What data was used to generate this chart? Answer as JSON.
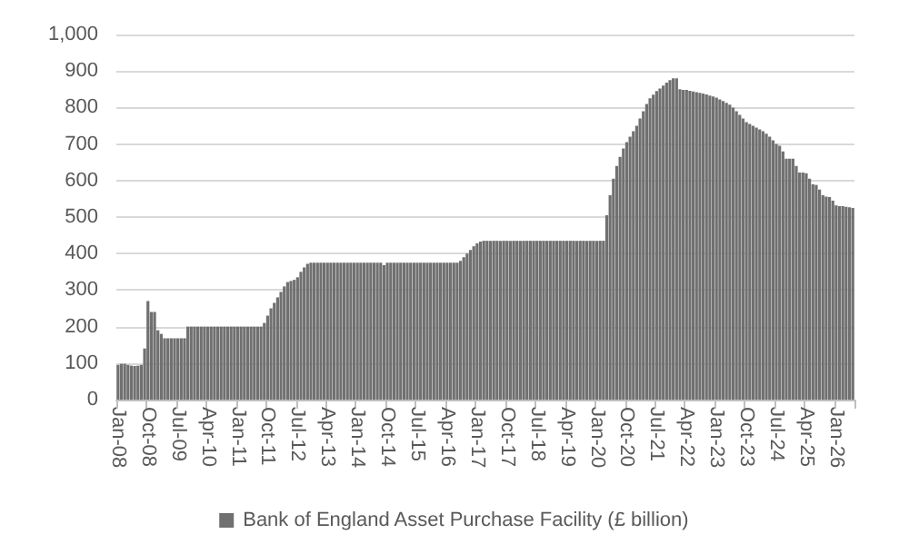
{
  "chart_data": {
    "type": "bar",
    "categories": [
      "Jan-08",
      null,
      null,
      null,
      null,
      null,
      null,
      null,
      null,
      "Oct-08",
      null,
      null,
      null,
      null,
      null,
      null,
      null,
      null,
      "Jul-09",
      null,
      null,
      null,
      null,
      null,
      null,
      null,
      null,
      "Apr-10",
      null,
      null,
      null,
      null,
      null,
      null,
      null,
      null,
      "Jan-11",
      null,
      null,
      null,
      null,
      null,
      null,
      null,
      null,
      "Oct-11",
      null,
      null,
      null,
      null,
      null,
      null,
      null,
      null,
      "Jul-12",
      null,
      null,
      null,
      null,
      null,
      null,
      null,
      null,
      "Apr-13",
      null,
      null,
      null,
      null,
      null,
      null,
      null,
      null,
      "Jan-14",
      null,
      null,
      null,
      null,
      null,
      null,
      null,
      null,
      "Oct-14",
      null,
      null,
      null,
      null,
      null,
      null,
      null,
      null,
      "Jul-15",
      null,
      null,
      null,
      null,
      null,
      null,
      null,
      null,
      "Apr-16",
      null,
      null,
      null,
      null,
      null,
      null,
      null,
      null,
      "Jan-17",
      null,
      null,
      null,
      null,
      null,
      null,
      null,
      null,
      "Oct-17",
      null,
      null,
      null,
      null,
      null,
      null,
      null,
      null,
      "Jul-18",
      null,
      null,
      null,
      null,
      null,
      null,
      null,
      null,
      "Apr-19",
      null,
      null,
      null,
      null,
      null,
      null,
      null,
      null,
      "Jan-20",
      null,
      null,
      null,
      null,
      null,
      null,
      null,
      null,
      "Oct-20",
      null,
      null,
      null,
      null,
      null,
      null,
      null,
      null,
      "Jul-21",
      null,
      null,
      null,
      null,
      null,
      null,
      null,
      null,
      "Apr-22",
      null,
      null,
      null,
      null,
      null,
      null,
      null,
      null,
      "Jan-23",
      null,
      null,
      null,
      null,
      null,
      null,
      null,
      null,
      "Oct-23",
      null,
      null,
      null,
      null,
      null,
      null,
      null,
      null,
      "Jul-24",
      null,
      null,
      null,
      null,
      null,
      null,
      null,
      null,
      "Apr-25",
      null,
      null,
      null,
      null,
      null,
      null,
      null,
      null,
      "Jan-26",
      null,
      null,
      null,
      null,
      null
    ],
    "series": [
      {
        "name": "Bank of England Asset Purchase Facility (£ billion)",
        "color": "#707070",
        "values": [
          95,
          98,
          98,
          95,
          93,
          92,
          93,
          95,
          140,
          270,
          240,
          240,
          190,
          180,
          168,
          168,
          168,
          168,
          168,
          168,
          168,
          200,
          200,
          200,
          200,
          200,
          200,
          200,
          200,
          200,
          200,
          200,
          200,
          200,
          200,
          200,
          200,
          200,
          200,
          200,
          200,
          200,
          200,
          200,
          210,
          230,
          250,
          265,
          280,
          295,
          310,
          322,
          325,
          328,
          335,
          350,
          362,
          372,
          375,
          375,
          375,
          375,
          375,
          375,
          375,
          375,
          375,
          375,
          375,
          375,
          375,
          375,
          375,
          375,
          375,
          375,
          375,
          375,
          375,
          375,
          368,
          375,
          375,
          375,
          375,
          375,
          375,
          375,
          375,
          375,
          375,
          375,
          375,
          375,
          375,
          375,
          375,
          375,
          375,
          375,
          375,
          375,
          375,
          380,
          390,
          400,
          410,
          420,
          428,
          433,
          435,
          435,
          435,
          435,
          435,
          435,
          435,
          435,
          435,
          435,
          435,
          435,
          435,
          435,
          435,
          435,
          435,
          435,
          435,
          435,
          435,
          435,
          435,
          435,
          435,
          435,
          435,
          435,
          435,
          435,
          435,
          435,
          435,
          435,
          435,
          435,
          435,
          505,
          560,
          605,
          640,
          665,
          688,
          705,
          720,
          735,
          750,
          770,
          790,
          810,
          825,
          835,
          845,
          852,
          860,
          868,
          875,
          880,
          880,
          850,
          848,
          848,
          846,
          844,
          842,
          840,
          838,
          836,
          833,
          830,
          827,
          822,
          818,
          813,
          808,
          800,
          790,
          780,
          770,
          760,
          755,
          750,
          745,
          740,
          735,
          728,
          720,
          710,
          700,
          695,
          680,
          660,
          660,
          660,
          640,
          622,
          622,
          620,
          605,
          590,
          588,
          575,
          560,
          556,
          555,
          545,
          532,
          530,
          530,
          528,
          527,
          525
        ]
      }
    ],
    "ylim": [
      0,
      1000
    ],
    "yticks": [
      0,
      100,
      200,
      300,
      400,
      500,
      600,
      700,
      800,
      900,
      {
        "value": 1000,
        "label": "1,000"
      }
    ],
    "grid": "y",
    "legend": "bottom"
  }
}
